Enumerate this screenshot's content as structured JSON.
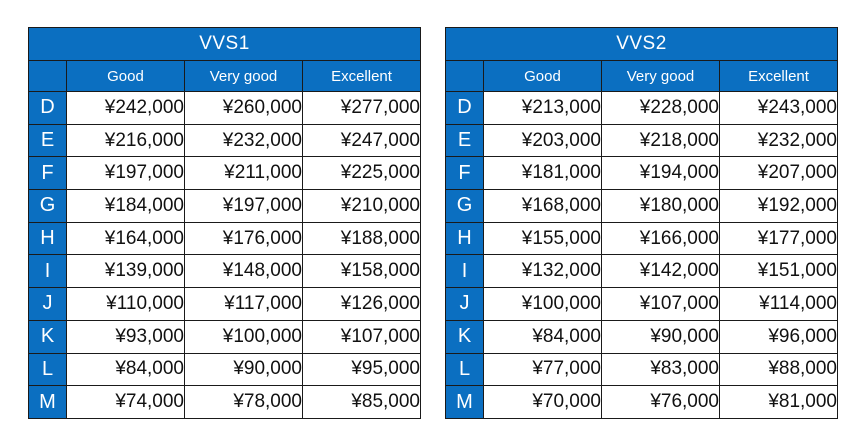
{
  "tables": [
    {
      "title": "VVS1",
      "columns": [
        "Good",
        "Very good",
        "Excellent"
      ],
      "rows": [
        {
          "grade": "D",
          "values": [
            "¥242,000",
            "¥260,000",
            "¥277,000"
          ]
        },
        {
          "grade": "E",
          "values": [
            "¥216,000",
            "¥232,000",
            "¥247,000"
          ]
        },
        {
          "grade": "F",
          "values": [
            "¥197,000",
            "¥211,000",
            "¥225,000"
          ]
        },
        {
          "grade": "G",
          "values": [
            "¥184,000",
            "¥197,000",
            "¥210,000"
          ]
        },
        {
          "grade": "H",
          "values": [
            "¥164,000",
            "¥176,000",
            "¥188,000"
          ]
        },
        {
          "grade": "I",
          "values": [
            "¥139,000",
            "¥148,000",
            "¥158,000"
          ]
        },
        {
          "grade": "J",
          "values": [
            "¥110,000",
            "¥117,000",
            "¥126,000"
          ]
        },
        {
          "grade": "K",
          "values": [
            "¥93,000",
            "¥100,000",
            "¥107,000"
          ]
        },
        {
          "grade": "L",
          "values": [
            "¥84,000",
            "¥90,000",
            "¥95,000"
          ]
        },
        {
          "grade": "M",
          "values": [
            "¥74,000",
            "¥78,000",
            "¥85,000"
          ]
        }
      ]
    },
    {
      "title": "VVS2",
      "columns": [
        "Good",
        "Very good",
        "Excellent"
      ],
      "rows": [
        {
          "grade": "D",
          "values": [
            "¥213,000",
            "¥228,000",
            "¥243,000"
          ]
        },
        {
          "grade": "E",
          "values": [
            "¥203,000",
            "¥218,000",
            "¥232,000"
          ]
        },
        {
          "grade": "F",
          "values": [
            "¥181,000",
            "¥194,000",
            "¥207,000"
          ]
        },
        {
          "grade": "G",
          "values": [
            "¥168,000",
            "¥180,000",
            "¥192,000"
          ]
        },
        {
          "grade": "H",
          "values": [
            "¥155,000",
            "¥166,000",
            "¥177,000"
          ]
        },
        {
          "grade": "I",
          "values": [
            "¥132,000",
            "¥142,000",
            "¥151,000"
          ]
        },
        {
          "grade": "J",
          "values": [
            "¥100,000",
            "¥107,000",
            "¥114,000"
          ]
        },
        {
          "grade": "K",
          "values": [
            "¥84,000",
            "¥90,000",
            "¥96,000"
          ]
        },
        {
          "grade": "L",
          "values": [
            "¥77,000",
            "¥83,000",
            "¥88,000"
          ]
        },
        {
          "grade": "M",
          "values": [
            "¥70,000",
            "¥76,000",
            "¥81,000"
          ]
        }
      ]
    }
  ],
  "colors": {
    "header_blue": "#0b6fc1",
    "header_text": "#ffffff",
    "cell_text": "#111111",
    "border": "#1a1a1a"
  }
}
